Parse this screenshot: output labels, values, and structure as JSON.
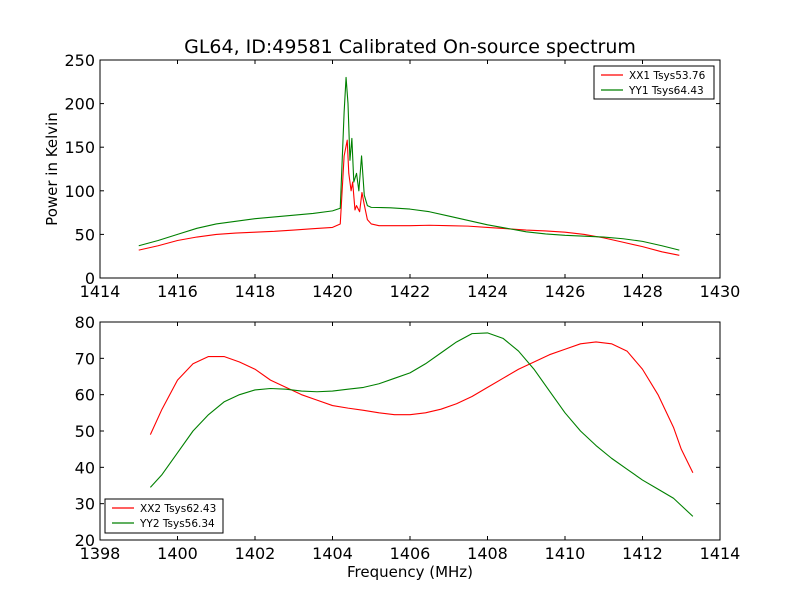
{
  "title": "GL64, ID:49581 Calibrated On-source spectrum",
  "colors": {
    "red": "#ff0000",
    "green": "#008000"
  },
  "chart_data": [
    {
      "type": "line",
      "ylabel": "Power in Kelvin",
      "xlim": [
        1414,
        1430
      ],
      "ylim": [
        0,
        250
      ],
      "x_ticks": [
        "1414",
        "1416",
        "1418",
        "1420",
        "1422",
        "1424",
        "1426",
        "1428",
        "1430"
      ],
      "y_ticks": [
        "0",
        "50",
        "100",
        "150",
        "200",
        "250"
      ],
      "legend_position": "top-right",
      "grid": false,
      "series": [
        {
          "name": "XX1 Tsys53.76",
          "color": "#ff0000",
          "points": [
            [
              1415.0,
              32
            ],
            [
              1415.5,
              37
            ],
            [
              1416.0,
              43
            ],
            [
              1416.5,
              47
            ],
            [
              1417.0,
              50
            ],
            [
              1417.5,
              51.5
            ],
            [
              1418.0,
              52.5
            ],
            [
              1418.5,
              53.5
            ],
            [
              1419.0,
              55
            ],
            [
              1419.5,
              56.5
            ],
            [
              1420.0,
              58
            ],
            [
              1420.2,
              62
            ],
            [
              1420.3,
              140
            ],
            [
              1420.38,
              158
            ],
            [
              1420.42,
              120
            ],
            [
              1420.48,
              100
            ],
            [
              1420.52,
              110
            ],
            [
              1420.58,
              78
            ],
            [
              1420.62,
              83
            ],
            [
              1420.7,
              76
            ],
            [
              1420.76,
              98
            ],
            [
              1420.82,
              84
            ],
            [
              1420.9,
              67
            ],
            [
              1421.0,
              62
            ],
            [
              1421.2,
              60
            ],
            [
              1421.5,
              60
            ],
            [
              1422.0,
              60
            ],
            [
              1422.5,
              60.5
            ],
            [
              1423.0,
              60
            ],
            [
              1423.5,
              59.5
            ],
            [
              1424.0,
              58
            ],
            [
              1424.5,
              56.5
            ],
            [
              1425.0,
              55
            ],
            [
              1425.5,
              54
            ],
            [
              1426.0,
              52.5
            ],
            [
              1426.5,
              50
            ],
            [
              1427.0,
              46
            ],
            [
              1427.5,
              41
            ],
            [
              1428.0,
              36
            ],
            [
              1428.5,
              30
            ],
            [
              1428.95,
              26
            ]
          ]
        },
        {
          "name": "YY1 Tsys64.43",
          "color": "#008000",
          "points": [
            [
              1415.0,
              37
            ],
            [
              1415.5,
              43
            ],
            [
              1416.0,
              50
            ],
            [
              1416.5,
              57
            ],
            [
              1417.0,
              62
            ],
            [
              1417.5,
              65
            ],
            [
              1418.0,
              68
            ],
            [
              1418.5,
              70
            ],
            [
              1419.0,
              72
            ],
            [
              1419.5,
              74
            ],
            [
              1420.0,
              77
            ],
            [
              1420.2,
              80
            ],
            [
              1420.3,
              190
            ],
            [
              1420.35,
              230
            ],
            [
              1420.4,
              200
            ],
            [
              1420.45,
              135
            ],
            [
              1420.5,
              160
            ],
            [
              1420.55,
              110
            ],
            [
              1420.62,
              120
            ],
            [
              1420.68,
              100
            ],
            [
              1420.75,
              140
            ],
            [
              1420.82,
              95
            ],
            [
              1420.9,
              83
            ],
            [
              1421.0,
              81
            ],
            [
              1421.5,
              80.5
            ],
            [
              1422.0,
              79
            ],
            [
              1422.5,
              76
            ],
            [
              1423.0,
              71
            ],
            [
              1423.5,
              66
            ],
            [
              1424.0,
              61
            ],
            [
              1424.5,
              57
            ],
            [
              1425.0,
              53
            ],
            [
              1425.5,
              50.5
            ],
            [
              1426.0,
              49
            ],
            [
              1426.5,
              48
            ],
            [
              1427.0,
              47
            ],
            [
              1427.5,
              45
            ],
            [
              1428.0,
              42
            ],
            [
              1428.5,
              37
            ],
            [
              1428.95,
              32
            ]
          ]
        }
      ]
    },
    {
      "type": "line",
      "xlabel": "Frequency (MHz)",
      "xlim": [
        1398,
        1414
      ],
      "ylim": [
        20,
        80
      ],
      "x_ticks": [
        "1398",
        "1400",
        "1402",
        "1404",
        "1406",
        "1408",
        "1410",
        "1412",
        "1414"
      ],
      "y_ticks": [
        "20",
        "30",
        "40",
        "50",
        "60",
        "70",
        "80"
      ],
      "legend_position": "bottom-left",
      "grid": false,
      "series": [
        {
          "name": "XX2 Tsys62.43",
          "color": "#ff0000",
          "points": [
            [
              1399.3,
              49
            ],
            [
              1399.6,
              56
            ],
            [
              1400.0,
              64
            ],
            [
              1400.4,
              68.5
            ],
            [
              1400.8,
              70.5
            ],
            [
              1401.2,
              70.5
            ],
            [
              1401.6,
              69
            ],
            [
              1402.0,
              67
            ],
            [
              1402.4,
              64
            ],
            [
              1402.8,
              62
            ],
            [
              1403.2,
              60
            ],
            [
              1403.6,
              58.5
            ],
            [
              1404.0,
              57
            ],
            [
              1404.4,
              56.3
            ],
            [
              1404.8,
              55.7
            ],
            [
              1405.2,
              55
            ],
            [
              1405.6,
              54.5
            ],
            [
              1406.0,
              54.5
            ],
            [
              1406.4,
              55
            ],
            [
              1406.8,
              56
            ],
            [
              1407.2,
              57.5
            ],
            [
              1407.6,
              59.5
            ],
            [
              1408.0,
              62
            ],
            [
              1408.4,
              64.5
            ],
            [
              1408.8,
              67
            ],
            [
              1409.2,
              69
            ],
            [
              1409.6,
              71
            ],
            [
              1410.0,
              72.5
            ],
            [
              1410.4,
              74
            ],
            [
              1410.8,
              74.5
            ],
            [
              1411.2,
              74
            ],
            [
              1411.6,
              72
            ],
            [
              1412.0,
              67
            ],
            [
              1412.4,
              60
            ],
            [
              1412.8,
              51
            ],
            [
              1413.0,
              45
            ],
            [
              1413.3,
              38.5
            ]
          ]
        },
        {
          "name": "YY2 Tsys56.34",
          "color": "#008000",
          "points": [
            [
              1399.3,
              34.5
            ],
            [
              1399.6,
              38
            ],
            [
              1400.0,
              44
            ],
            [
              1400.4,
              50
            ],
            [
              1400.8,
              54.5
            ],
            [
              1401.2,
              58
            ],
            [
              1401.6,
              60
            ],
            [
              1402.0,
              61.3
            ],
            [
              1402.4,
              61.7
            ],
            [
              1402.8,
              61.5
            ],
            [
              1403.2,
              61
            ],
            [
              1403.6,
              60.8
            ],
            [
              1404.0,
              61
            ],
            [
              1404.4,
              61.5
            ],
            [
              1404.8,
              62
            ],
            [
              1405.2,
              63
            ],
            [
              1405.6,
              64.5
            ],
            [
              1406.0,
              66
            ],
            [
              1406.4,
              68.5
            ],
            [
              1406.8,
              71.5
            ],
            [
              1407.2,
              74.5
            ],
            [
              1407.6,
              76.8
            ],
            [
              1408.0,
              77
            ],
            [
              1408.4,
              75.5
            ],
            [
              1408.8,
              72
            ],
            [
              1409.2,
              67
            ],
            [
              1409.6,
              61
            ],
            [
              1410.0,
              55
            ],
            [
              1410.4,
              50
            ],
            [
              1410.8,
              46
            ],
            [
              1411.2,
              42.5
            ],
            [
              1411.6,
              39.5
            ],
            [
              1412.0,
              36.5
            ],
            [
              1412.4,
              34
            ],
            [
              1412.8,
              31.5
            ],
            [
              1413.0,
              29.5
            ],
            [
              1413.3,
              26.5
            ]
          ]
        }
      ]
    }
  ]
}
